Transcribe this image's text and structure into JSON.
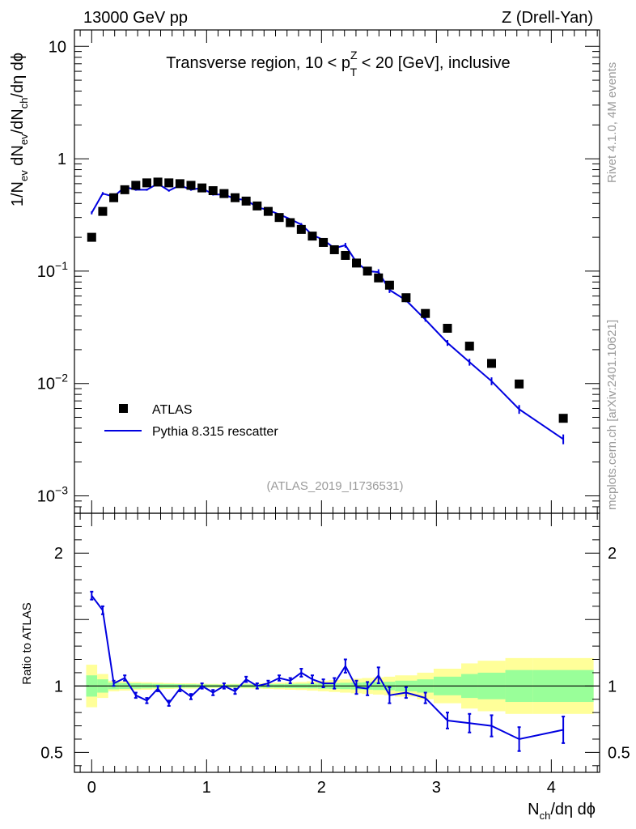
{
  "header": {
    "energy_label": "13000 GeV pp",
    "process_label": "Z (Drell-Yan)"
  },
  "side": {
    "rivet_label": "Rivet 4.1.0,  4M events",
    "site_label": "mcplots.cern.ch [arXiv:2401.10621]"
  },
  "analysis_id": "(ATLAS_2019_I1736531)",
  "main_title": {
    "pre": "Transverse region, 10 < p",
    "sup": "Z",
    "sub": "T",
    "post": " < 20 [GeV], inclusive"
  },
  "axes": {
    "y_top": {
      "p1": "1/N",
      "s1": "ev",
      "p2": " dN",
      "s2": "ev",
      "p3": "/dN",
      "s3": "ch",
      "p4": "/dη dϕ"
    },
    "y_ratio": "Ratio to ATLAS",
    "x": {
      "p1": "N",
      "s1": "ch",
      "p2": "/dη dϕ"
    }
  },
  "legend": {
    "data_label": "ATLAS",
    "mc_label": "Pythia 8.315 rescatter"
  },
  "colors": {
    "data": "#000000",
    "mc": "#0000e0",
    "band_yellow": "#ffff99",
    "band_green": "#99ff99"
  },
  "chart_data": {
    "type": "scatter",
    "xlim": [
      -0.15,
      4.42
    ],
    "x_ticks": [
      0,
      1,
      2,
      3,
      4
    ],
    "x_tick_labels": [
      "0",
      "1",
      "2",
      "3",
      "4"
    ],
    "top": {
      "yscale": "log",
      "ylim": [
        0.0007,
        14
      ],
      "y_ticks": [
        0.001,
        0.01,
        0.1,
        1,
        10
      ],
      "y_tick_labels": [
        {
          "base": "10",
          "exp": "−3"
        },
        {
          "base": "10",
          "exp": "−2"
        },
        {
          "base": "10",
          "exp": "−1"
        },
        {
          "base": "1",
          "exp": ""
        },
        {
          "base": "10",
          "exp": ""
        }
      ]
    },
    "ratio": {
      "ylim": [
        0.35,
        2.3
      ],
      "y_ticks": [
        0.5,
        1,
        2
      ],
      "y_tick_labels": [
        "0.5",
        "1",
        "2"
      ]
    },
    "series": [
      {
        "name": "ATLAS",
        "x": [
          0.0,
          0.096,
          0.192,
          0.288,
          0.384,
          0.48,
          0.576,
          0.672,
          0.768,
          0.864,
          0.96,
          1.056,
          1.152,
          1.248,
          1.344,
          1.44,
          1.536,
          1.632,
          1.728,
          1.824,
          1.92,
          2.016,
          2.112,
          2.208,
          2.304,
          2.4,
          2.496,
          2.592,
          2.736,
          2.904,
          3.096,
          3.288,
          3.48,
          3.72,
          4.104
        ],
        "y": [
          0.2,
          0.34,
          0.45,
          0.53,
          0.58,
          0.61,
          0.62,
          0.61,
          0.6,
          0.58,
          0.55,
          0.52,
          0.49,
          0.45,
          0.42,
          0.38,
          0.34,
          0.3,
          0.27,
          0.235,
          0.205,
          0.18,
          0.155,
          0.138,
          0.118,
          0.1,
          0.087,
          0.075,
          0.058,
          0.042,
          0.031,
          0.0215,
          0.0151,
          0.0099,
          0.0049
        ]
      },
      {
        "name": "Pythia 8.315 rescatter",
        "x": [
          0.0,
          0.096,
          0.192,
          0.288,
          0.384,
          0.48,
          0.576,
          0.672,
          0.768,
          0.864,
          0.96,
          1.056,
          1.152,
          1.248,
          1.344,
          1.44,
          1.536,
          1.632,
          1.728,
          1.824,
          1.92,
          2.016,
          2.112,
          2.208,
          2.304,
          2.4,
          2.496,
          2.592,
          2.736,
          2.904,
          3.096,
          3.288,
          3.48,
          3.72,
          4.104
        ],
        "y": [
          0.33,
          0.49,
          0.46,
          0.56,
          0.53,
          0.53,
          0.6,
          0.52,
          0.58,
          0.53,
          0.55,
          0.48,
          0.48,
          0.44,
          0.43,
          0.37,
          0.35,
          0.32,
          0.29,
          0.26,
          0.21,
          0.19,
          0.16,
          0.17,
          0.12,
          0.1,
          0.098,
          0.068,
          0.055,
          0.037,
          0.023,
          0.0155,
          0.0105,
          0.0059,
          0.0032
        ],
        "ratio": [
          1.68,
          1.57,
          1.02,
          1.06,
          0.93,
          0.89,
          0.98,
          0.87,
          0.98,
          0.92,
          1.0,
          0.95,
          1.0,
          0.96,
          1.05,
          1.0,
          1.02,
          1.06,
          1.04,
          1.1,
          1.05,
          1.02,
          1.02,
          1.15,
          0.99,
          0.98,
          1.08,
          0.93,
          0.95,
          0.91,
          0.74,
          0.72,
          0.7,
          0.6,
          0.67
        ],
        "ratio_err": [
          0.03,
          0.03,
          0.02,
          0.02,
          0.02,
          0.02,
          0.02,
          0.02,
          0.02,
          0.02,
          0.02,
          0.02,
          0.02,
          0.02,
          0.02,
          0.02,
          0.02,
          0.02,
          0.02,
          0.03,
          0.03,
          0.03,
          0.04,
          0.05,
          0.05,
          0.05,
          0.06,
          0.06,
          0.04,
          0.04,
          0.06,
          0.07,
          0.08,
          0.09,
          0.1
        ]
      }
    ],
    "bands": {
      "x_edges": [
        -0.048,
        0.048,
        0.144,
        0.24,
        0.336,
        0.432,
        0.528,
        0.624,
        0.72,
        0.816,
        0.912,
        1.008,
        1.104,
        1.2,
        1.296,
        1.392,
        1.488,
        1.584,
        1.68,
        1.776,
        1.872,
        1.968,
        2.064,
        2.16,
        2.256,
        2.352,
        2.448,
        2.544,
        2.64,
        2.832,
        2.976,
        3.216,
        3.36,
        3.6,
        3.84,
        4.368
      ],
      "yellow_half": [
        0.16,
        0.09,
        0.04,
        0.035,
        0.03,
        0.028,
        0.025,
        0.022,
        0.02,
        0.02,
        0.018,
        0.016,
        0.015,
        0.016,
        0.018,
        0.02,
        0.022,
        0.025,
        0.028,
        0.03,
        0.035,
        0.04,
        0.045,
        0.05,
        0.055,
        0.06,
        0.065,
        0.07,
        0.08,
        0.1,
        0.13,
        0.17,
        0.19,
        0.21,
        0.21
      ],
      "green_half": [
        0.08,
        0.05,
        0.025,
        0.022,
        0.02,
        0.018,
        0.016,
        0.015,
        0.014,
        0.013,
        0.012,
        0.011,
        0.01,
        0.011,
        0.012,
        0.013,
        0.014,
        0.015,
        0.016,
        0.017,
        0.018,
        0.02,
        0.022,
        0.024,
        0.026,
        0.028,
        0.03,
        0.032,
        0.04,
        0.05,
        0.07,
        0.09,
        0.1,
        0.12,
        0.12
      ]
    }
  }
}
